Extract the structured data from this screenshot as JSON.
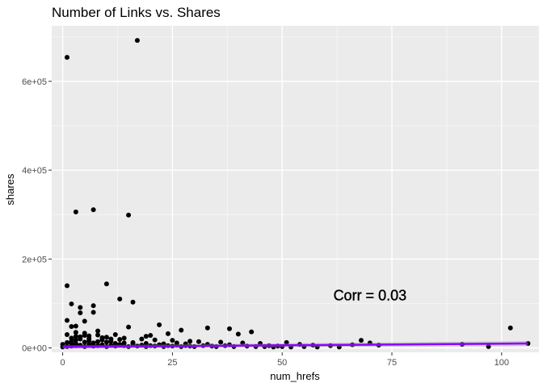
{
  "chart_data": {
    "type": "scatter",
    "title": "Number of Links vs. Shares",
    "xlabel": "num_hrefs",
    "ylabel": "shares",
    "xlim": [
      -2.5,
      108.5
    ],
    "ylim": [
      -10000,
      725000
    ],
    "x_ticks": [
      0,
      25,
      50,
      75,
      100
    ],
    "x_tick_labels": [
      "0",
      "25",
      "50",
      "75",
      "100"
    ],
    "y_ticks": [
      0,
      200000,
      400000,
      600000
    ],
    "y_tick_labels": [
      "0e+00",
      "2e+05",
      "4e+05",
      "6e+05"
    ],
    "grid": true,
    "legend": "none",
    "annotation": {
      "text": "Corr = 0.03",
      "x": 70,
      "y": 118000
    },
    "trend_line": {
      "x": [
        0,
        106
      ],
      "y": [
        2000,
        10000
      ],
      "color": "#8b00ff"
    },
    "colors": {
      "panel": "#ebebeb",
      "grid_major": "#ffffff",
      "point": "#000000",
      "trend": "#8b00ff"
    },
    "points": [
      [
        17,
        692000
      ],
      [
        1,
        654000
      ],
      [
        7,
        311000
      ],
      [
        3,
        306000
      ],
      [
        15,
        299000
      ],
      [
        10,
        144000
      ],
      [
        1,
        140000
      ],
      [
        13,
        110000
      ],
      [
        16,
        103000
      ],
      [
        2,
        99000
      ],
      [
        7,
        95000
      ],
      [
        4,
        91000
      ],
      [
        7,
        80000
      ],
      [
        4,
        79000
      ],
      [
        1,
        62000
      ],
      [
        5,
        60000
      ],
      [
        22,
        52000
      ],
      [
        3,
        49000
      ],
      [
        2,
        48000
      ],
      [
        15,
        47000
      ],
      [
        33,
        45000
      ],
      [
        38,
        43000
      ],
      [
        102,
        45000
      ],
      [
        43,
        36000
      ],
      [
        27,
        40000
      ],
      [
        40,
        31000
      ],
      [
        19,
        26000
      ],
      [
        20,
        28000
      ],
      [
        24,
        32000
      ],
      [
        12,
        30000
      ],
      [
        8,
        29000
      ],
      [
        5,
        28000
      ],
      [
        6,
        27000
      ],
      [
        3,
        26000
      ],
      [
        10,
        24000
      ],
      [
        14,
        22000
      ],
      [
        18,
        20000
      ],
      [
        21,
        18000
      ],
      [
        25,
        17000
      ],
      [
        29,
        15000
      ],
      [
        31,
        14000
      ],
      [
        36,
        13000
      ],
      [
        41,
        11000
      ],
      [
        45,
        10000
      ],
      [
        51,
        12000
      ],
      [
        54,
        8000
      ],
      [
        57,
        6000
      ],
      [
        61,
        5000
      ],
      [
        68,
        17000
      ],
      [
        70,
        11000
      ],
      [
        66,
        7000
      ],
      [
        72,
        6000
      ],
      [
        91,
        8000
      ],
      [
        97,
        3000
      ],
      [
        106,
        10000
      ],
      [
        0,
        2000
      ],
      [
        1,
        3000
      ],
      [
        2,
        4000
      ],
      [
        3,
        5000
      ],
      [
        4,
        6000
      ],
      [
        5,
        3000
      ],
      [
        6,
        8000
      ],
      [
        7,
        4000
      ],
      [
        8,
        5000
      ],
      [
        9,
        7000
      ],
      [
        10,
        3000
      ],
      [
        11,
        6000
      ],
      [
        12,
        4000
      ],
      [
        13,
        8000
      ],
      [
        14,
        5000
      ],
      [
        15,
        3000
      ],
      [
        16,
        9000
      ],
      [
        17,
        4000
      ],
      [
        18,
        6000
      ],
      [
        19,
        3000
      ],
      [
        20,
        5000
      ],
      [
        21,
        4000
      ],
      [
        22,
        7000
      ],
      [
        23,
        3000
      ],
      [
        24,
        5000
      ],
      [
        25,
        4000
      ],
      [
        26,
        6000
      ],
      [
        27,
        3000
      ],
      [
        28,
        5000
      ],
      [
        29,
        4000
      ],
      [
        30,
        3000
      ],
      [
        32,
        5000
      ],
      [
        34,
        4000
      ],
      [
        35,
        3000
      ],
      [
        37,
        5000
      ],
      [
        39,
        3000
      ],
      [
        42,
        4000
      ],
      [
        44,
        3000
      ],
      [
        46,
        3000
      ],
      [
        48,
        2000
      ],
      [
        50,
        3000
      ],
      [
        52,
        2000
      ],
      [
        55,
        3000
      ],
      [
        58,
        2000
      ],
      [
        63,
        2000
      ],
      [
        1,
        12000
      ],
      [
        2,
        15000
      ],
      [
        3,
        18000
      ],
      [
        4,
        20000
      ],
      [
        5,
        13000
      ],
      [
        6,
        16000
      ],
      [
        8,
        14000
      ],
      [
        9,
        18000
      ],
      [
        11,
        15000
      ],
      [
        13,
        19000
      ],
      [
        2,
        22000
      ],
      [
        4,
        25000
      ],
      [
        6,
        21000
      ],
      [
        9,
        23000
      ],
      [
        11,
        20000
      ],
      [
        3,
        35000
      ],
      [
        5,
        33000
      ],
      [
        8,
        38000
      ],
      [
        1,
        30000
      ],
      [
        12,
        10000
      ],
      [
        16,
        12000
      ],
      [
        0,
        8000
      ],
      [
        2,
        9000
      ],
      [
        3,
        10000
      ],
      [
        7,
        11000
      ],
      [
        10,
        13000
      ],
      [
        14,
        11000
      ],
      [
        19,
        10000
      ],
      [
        23,
        9000
      ],
      [
        26,
        11000
      ],
      [
        28,
        9000
      ],
      [
        33,
        8000
      ],
      [
        38,
        7000
      ],
      [
        47,
        5000
      ],
      [
        49,
        4000
      ]
    ]
  }
}
